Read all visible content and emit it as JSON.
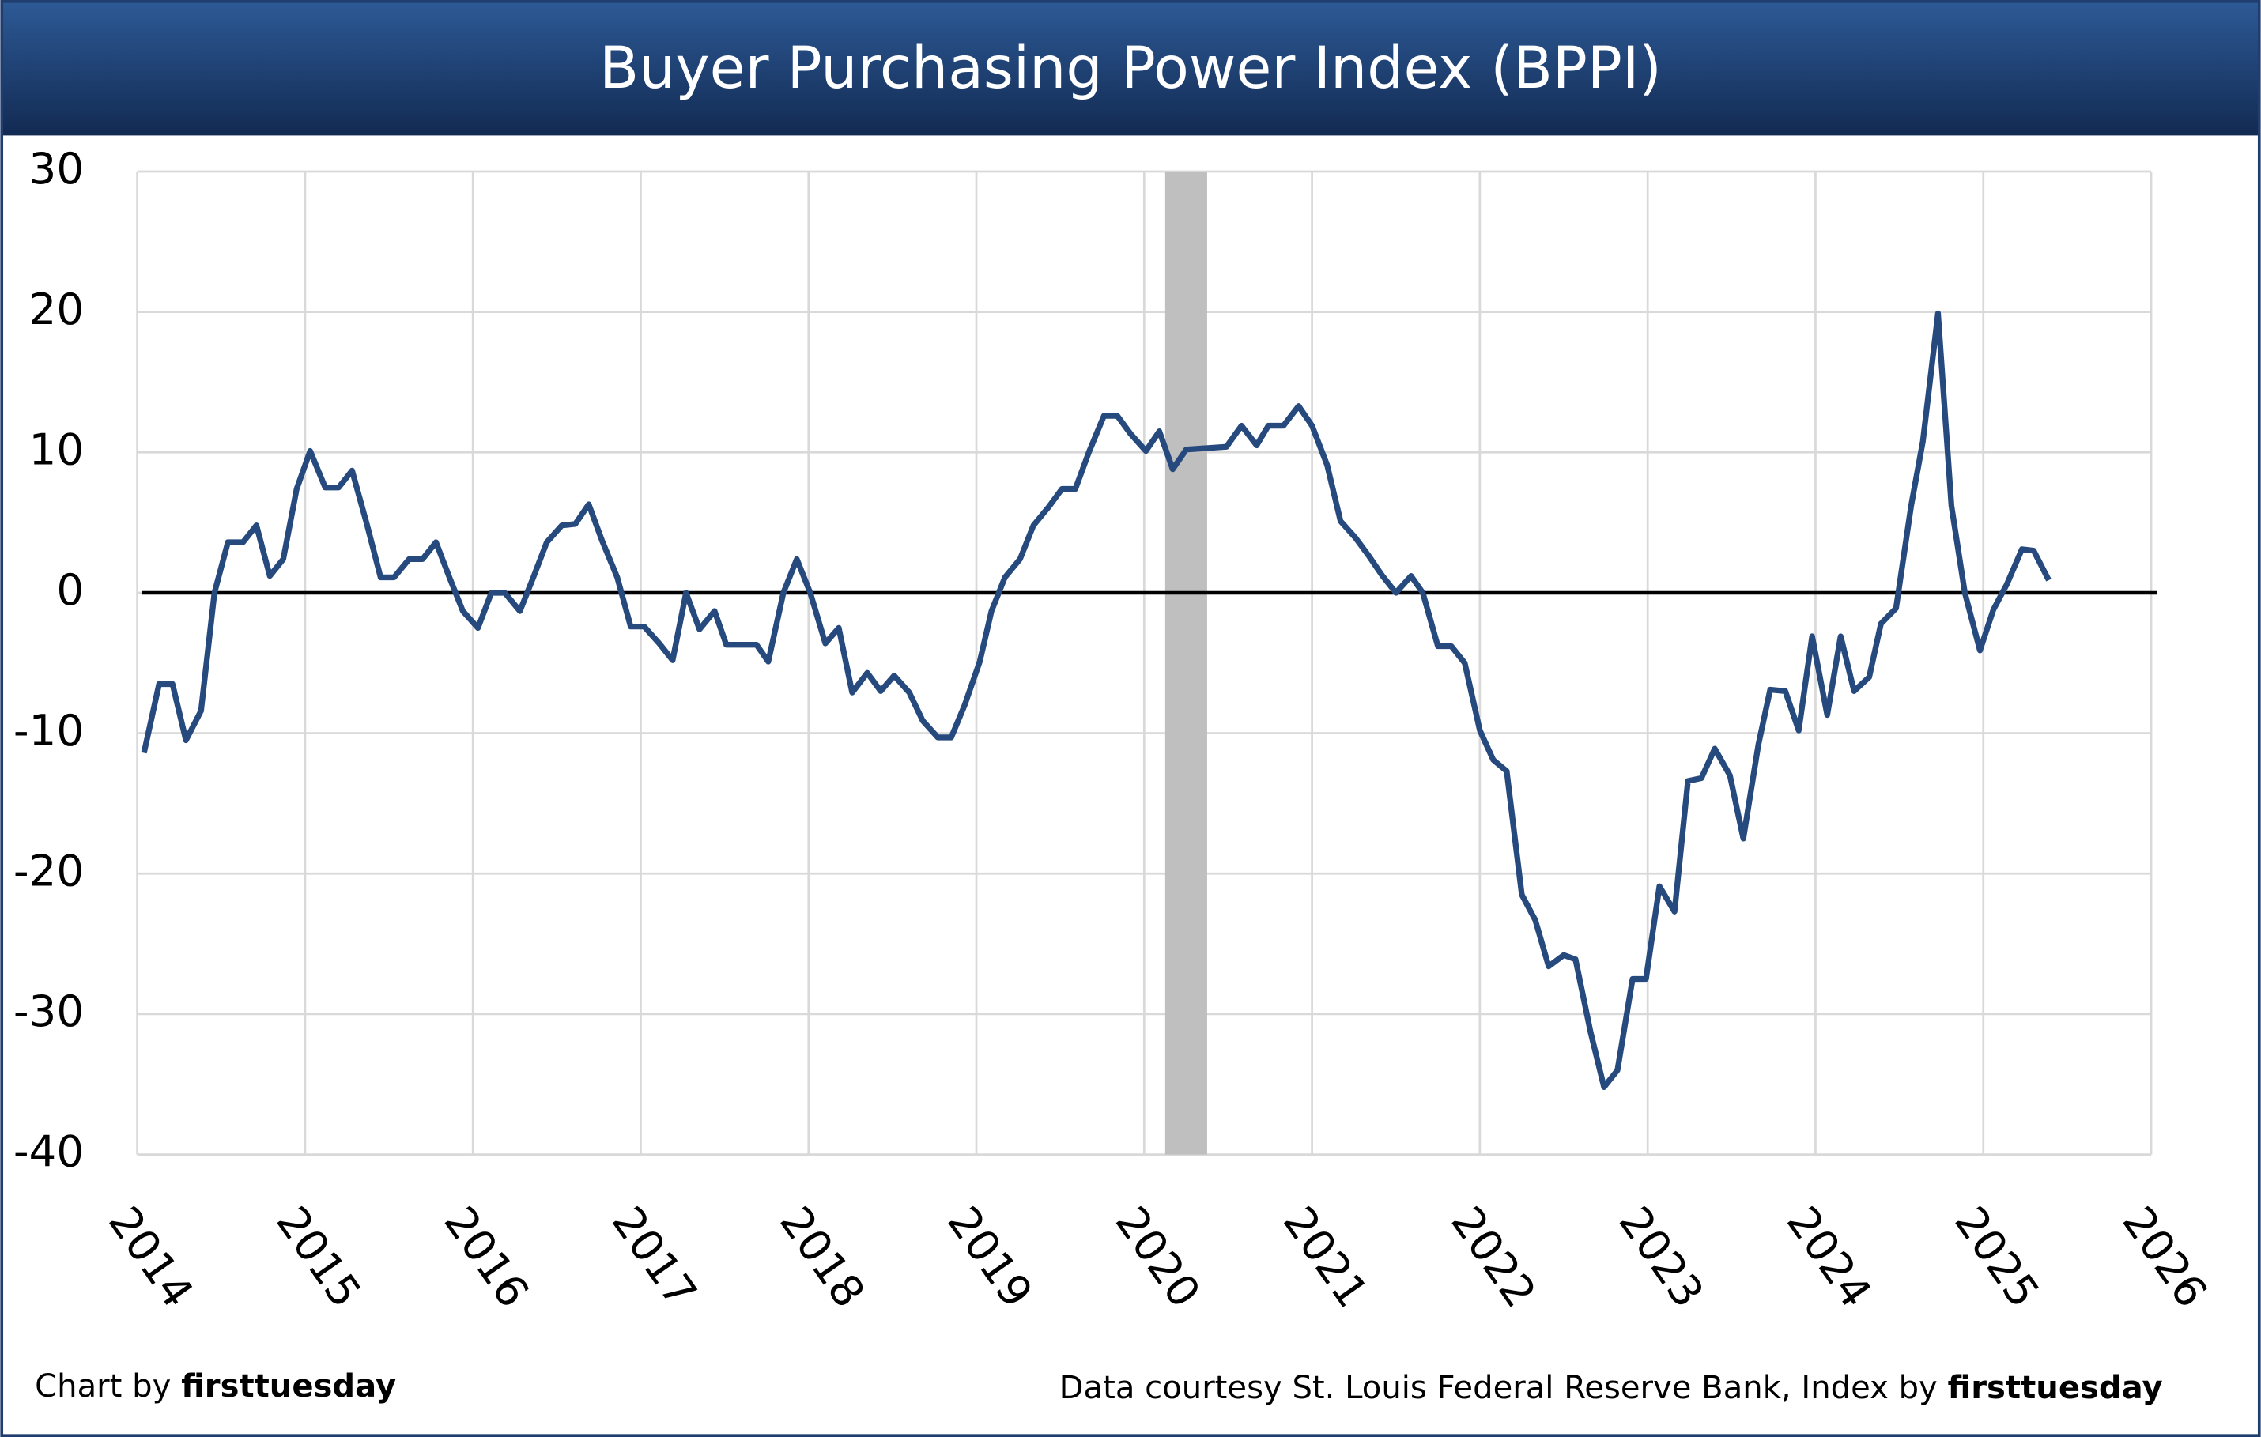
{
  "chart_data": {
    "type": "line",
    "title": "Buyer Purchasing Power Index (BPPI)",
    "footer_left": {
      "prefix": "Chart by",
      "brand": "firsttuesday"
    },
    "footer_right": {
      "prefix": "Data courtesy St. Louis Federal Reserve Bank, Index by",
      "brand": "firsttuesday"
    },
    "xlim": [
      2014,
      2026
    ],
    "xticks": [
      2014,
      2015,
      2016,
      2017,
      2018,
      2019,
      2020,
      2021,
      2022,
      2023,
      2024,
      2025,
      2026
    ],
    "ylim": [
      -40,
      30
    ],
    "yticks": [
      -40,
      -30,
      -20,
      -10,
      0,
      10,
      20,
      30
    ],
    "grid": true,
    "zero_line": {
      "value": 0,
      "color": "#000000"
    },
    "shaded_regions": [
      {
        "start": 2020.125,
        "end": 2020.375,
        "color": "#bfbfbf"
      }
    ],
    "x": [
      2014.04,
      2014.13,
      2014.21,
      2014.29,
      2014.38,
      2014.46,
      2014.54,
      2014.63,
      2014.71,
      2014.79,
      2014.87,
      2014.95,
      2015.03,
      2015.12,
      2015.2,
      2015.28,
      2015.37,
      2015.45,
      2015.53,
      2015.62,
      2015.7,
      2015.78,
      2015.86,
      2015.94,
      2016.03,
      2016.11,
      2016.19,
      2016.28,
      2016.36,
      2016.44,
      2016.53,
      2016.61,
      2016.69,
      2016.77,
      2016.86,
      2016.94,
      2017.02,
      2017.11,
      2017.19,
      2017.27,
      2017.35,
      2017.44,
      2017.51,
      2017.6,
      2017.69,
      2017.76,
      2017.85,
      2017.93,
      2018.01,
      2018.1,
      2018.18,
      2018.26,
      2018.35,
      2018.43,
      2018.51,
      2018.6,
      2018.68,
      2018.77,
      2018.85,
      2018.93,
      2019.02,
      2019.09,
      2019.17,
      2019.26,
      2019.34,
      2019.43,
      2019.51,
      2019.59,
      2019.67,
      2019.76,
      2019.84,
      2019.92,
      2020.01,
      2020.09,
      2020.17,
      2020.25,
      2020.49,
      2020.58,
      2020.67,
      2020.74,
      2020.83,
      2020.92,
      2021.0,
      2021.09,
      2021.17,
      2021.26,
      2021.34,
      2021.42,
      2021.5,
      2021.59,
      2021.66,
      2021.75,
      2021.83,
      2021.91,
      2022.0,
      2022.08,
      2022.16,
      2022.25,
      2022.33,
      2022.41,
      2022.5,
      2022.57,
      2022.66,
      2022.74,
      2022.82,
      2022.91,
      2022.99,
      2023.07,
      2023.16,
      2023.24,
      2023.32,
      2023.4,
      2023.49,
      2023.57,
      2023.66,
      2023.73,
      2023.82,
      2023.9,
      2023.98,
      2024.07,
      2024.15,
      2024.23,
      2024.32,
      2024.39,
      2024.48,
      2024.57,
      2024.64,
      2024.73,
      2024.81,
      2024.89,
      2024.98,
      2025.06,
      2025.14,
      2025.23,
      2025.3,
      2025.39
    ],
    "series": [
      {
        "color": "#264a7e",
        "values": [
          -11.4,
          -6.5,
          -6.5,
          -10.5,
          -8.4,
          0,
          3.6,
          3.6,
          4.8,
          1.2,
          2.4,
          7.4,
          10.1,
          7.5,
          7.5,
          8.7,
          4.8,
          1.1,
          1.1,
          2.4,
          2.4,
          3.6,
          1.1,
          -1.3,
          -2.5,
          0,
          0,
          -1.3,
          1.1,
          3.6,
          4.8,
          4.9,
          6.3,
          3.7,
          1.1,
          -2.4,
          -2.4,
          -3.6,
          -4.8,
          0,
          -2.6,
          -1.3,
          -3.7,
          -3.7,
          -3.7,
          -4.9,
          0,
          2.4,
          0,
          -3.6,
          -2.5,
          -7.1,
          -5.7,
          -7.0,
          -5.9,
          -7.1,
          -9.1,
          -10.3,
          -10.3,
          -8.0,
          -4.9,
          -1.3,
          1.1,
          2.4,
          4.8,
          6.1,
          7.4,
          7.4,
          10.0,
          12.6,
          12.6,
          11.3,
          10.1,
          11.5,
          8.8,
          10.2,
          10.4,
          11.9,
          10.5,
          11.9,
          11.9,
          13.3,
          11.9,
          9.1,
          5.1,
          3.9,
          2.6,
          1.2,
          0,
          1.2,
          0,
          -3.8,
          -3.8,
          -5.0,
          -9.8,
          -11.9,
          -12.7,
          -21.5,
          -23.3,
          -26.6,
          -25.8,
          -26.1,
          -31.3,
          -35.2,
          -34.0,
          -27.5,
          -27.5,
          -20.9,
          -22.7,
          -13.4,
          -13.2,
          -11.1,
          -13.0,
          -17.5,
          -10.8,
          -6.9,
          -7.0,
          -9.8,
          -3.1,
          -8.7,
          -3.1,
          -7.0,
          -6.0,
          -2.2,
          -1.1,
          6.2,
          10.8,
          19.9,
          6.2,
          0,
          -4.1,
          -1.2,
          0.6,
          3.1,
          3.0,
          0.9
        ]
      }
    ]
  }
}
